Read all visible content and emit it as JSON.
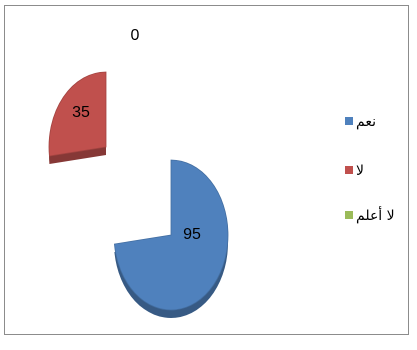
{
  "chart_data": {
    "type": "pie",
    "style": "exploded 3D pie",
    "categories": [
      "نعم",
      "لا",
      "لا أعلم"
    ],
    "values": [
      95,
      35,
      0
    ],
    "colors": [
      "#4f81bd",
      "#c0504d",
      "#9bbb59"
    ],
    "legend_position": "right",
    "data_labels": [
      "95",
      "35",
      "0"
    ]
  }
}
